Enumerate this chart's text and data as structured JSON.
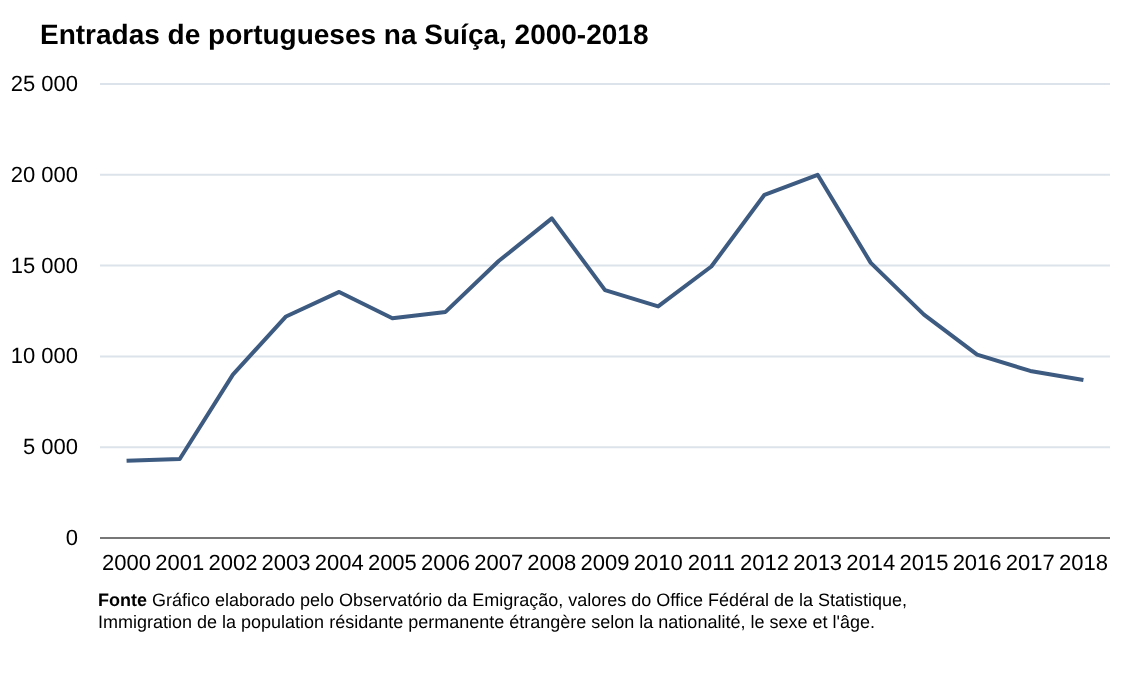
{
  "chart_data": {
    "type": "line",
    "title": "Entradas de portugueses na Suíça, 2000-2018",
    "categories": [
      "2000",
      "2001",
      "2002",
      "2003",
      "2004",
      "2005",
      "2006",
      "2007",
      "2008",
      "2009",
      "2010",
      "2011",
      "2012",
      "2013",
      "2014",
      "2015",
      "2016",
      "2017",
      "2018"
    ],
    "series": [
      {
        "color": "#3d5a80",
        "values": [
          4250,
          4350,
          9000,
          12200,
          13550,
          12100,
          12450,
          15250,
          17600,
          13650,
          12750,
          14950,
          18900,
          20000,
          15150,
          12300,
          10100,
          9200,
          8700
        ]
      }
    ],
    "ylim": [
      0,
      25000
    ],
    "yticks": [
      {
        "value": 0,
        "label": "0"
      },
      {
        "value": 5000,
        "label": "5 000"
      },
      {
        "value": 10000,
        "label": "10 000"
      },
      {
        "value": 15000,
        "label": "15 000"
      },
      {
        "value": 20000,
        "label": "20 000"
      },
      {
        "value": 25000,
        "label": "25 000"
      }
    ],
    "grid": "y",
    "annotations": [
      "Fonte Gráfico elaborado pelo Observatório da Emigração, valores do Office Fédéral de la Statistique, Immigration de la population résidante permanente étrangère selon la nationalité, le sexe et l'âge."
    ]
  }
}
